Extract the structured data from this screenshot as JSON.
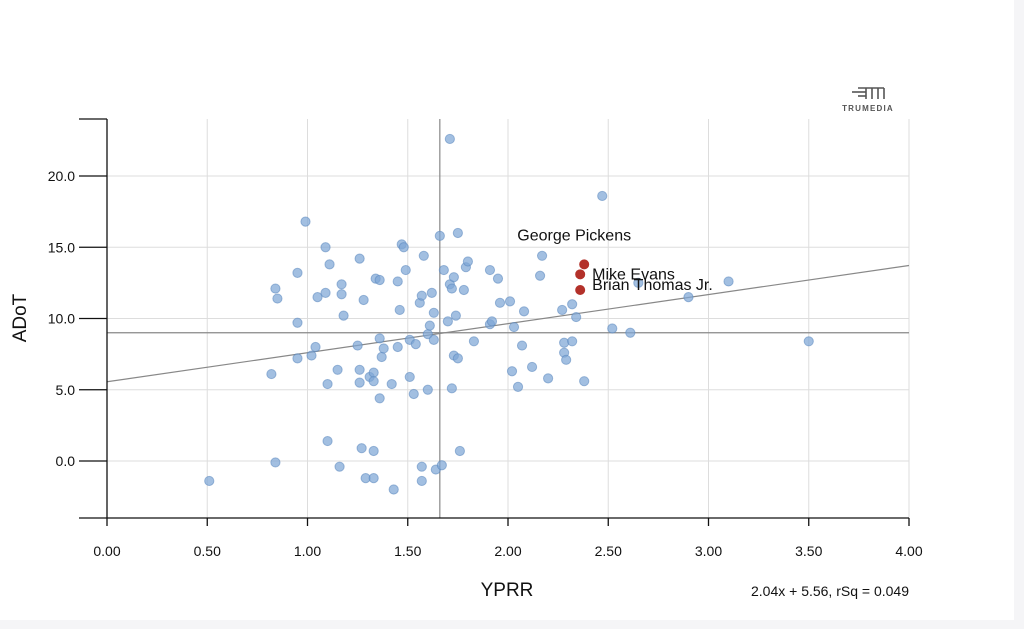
{
  "logo": {
    "text": "TRUMEDIA",
    "icon": "trumedia-logo-icon"
  },
  "chart_data": {
    "type": "scatter",
    "xlabel": "YPRR",
    "ylabel": "ADoT",
    "xlim": [
      0,
      4
    ],
    "ylim": [
      -4,
      24
    ],
    "x_ticks": [
      "0.00",
      "0.50",
      "1.00",
      "1.50",
      "2.00",
      "2.50",
      "3.00",
      "3.50",
      "4.00"
    ],
    "y_ticks": [
      "0.0",
      "5.0",
      "10.0",
      "15.0",
      "20.0"
    ],
    "grid": true,
    "reference_lines": {
      "x": 1.66,
      "y": 9.0
    },
    "regression": {
      "slope": 2.04,
      "intercept": 5.56,
      "label": "2.04x + 5.56, rSq = 0.049"
    },
    "point_color": "#7ea6d6",
    "highlight_color": "#b3312a",
    "points": [
      [
        0.51,
        -1.4
      ],
      [
        0.82,
        6.1
      ],
      [
        0.84,
        12.1
      ],
      [
        0.85,
        11.4
      ],
      [
        0.84,
        -0.1
      ],
      [
        0.95,
        13.2
      ],
      [
        0.95,
        9.7
      ],
      [
        0.95,
        7.2
      ],
      [
        0.99,
        16.8
      ],
      [
        1.02,
        7.4
      ],
      [
        1.04,
        8.0
      ],
      [
        1.05,
        11.5
      ],
      [
        1.09,
        11.8
      ],
      [
        1.09,
        15.0
      ],
      [
        1.1,
        5.4
      ],
      [
        1.11,
        13.8
      ],
      [
        1.1,
        1.4
      ],
      [
        1.15,
        6.4
      ],
      [
        1.16,
        -0.4
      ],
      [
        1.17,
        12.4
      ],
      [
        1.17,
        11.7
      ],
      [
        1.18,
        10.2
      ],
      [
        1.25,
        8.1
      ],
      [
        1.26,
        14.2
      ],
      [
        1.26,
        6.4
      ],
      [
        1.26,
        5.5
      ],
      [
        1.27,
        0.9
      ],
      [
        1.28,
        11.3
      ],
      [
        1.29,
        -1.2
      ],
      [
        1.31,
        5.9
      ],
      [
        1.33,
        6.2
      ],
      [
        1.33,
        5.6
      ],
      [
        1.33,
        0.7
      ],
      [
        1.33,
        -1.2
      ],
      [
        1.34,
        12.8
      ],
      [
        1.36,
        12.7
      ],
      [
        1.36,
        8.6
      ],
      [
        1.36,
        4.4
      ],
      [
        1.37,
        7.3
      ],
      [
        1.38,
        7.9
      ],
      [
        1.42,
        5.4
      ],
      [
        1.43,
        -2.0
      ],
      [
        1.45,
        12.6
      ],
      [
        1.45,
        8.0
      ],
      [
        1.46,
        10.6
      ],
      [
        1.47,
        15.2
      ],
      [
        1.48,
        15.0
      ],
      [
        1.49,
        13.4
      ],
      [
        1.51,
        5.9
      ],
      [
        1.51,
        8.5
      ],
      [
        1.53,
        4.7
      ],
      [
        1.54,
        8.2
      ],
      [
        1.56,
        11.1
      ],
      [
        1.57,
        11.6
      ],
      [
        1.58,
        14.4
      ],
      [
        1.57,
        -0.4
      ],
      [
        1.57,
        -1.4
      ],
      [
        1.6,
        8.9
      ],
      [
        1.6,
        5.0
      ],
      [
        1.61,
        9.5
      ],
      [
        1.62,
        11.8
      ],
      [
        1.63,
        8.5
      ],
      [
        1.63,
        10.4
      ],
      [
        1.64,
        -0.6
      ],
      [
        1.66,
        15.8
      ],
      [
        1.67,
        -0.3
      ],
      [
        1.68,
        13.4
      ],
      [
        1.7,
        9.8
      ],
      [
        1.71,
        22.6
      ],
      [
        1.71,
        12.4
      ],
      [
        1.72,
        12.1
      ],
      [
        1.72,
        5.1
      ],
      [
        1.73,
        12.9
      ],
      [
        1.73,
        7.4
      ],
      [
        1.74,
        10.2
      ],
      [
        1.75,
        7.2
      ],
      [
        1.75,
        16.0
      ],
      [
        1.76,
        0.7
      ],
      [
        1.78,
        12.0
      ],
      [
        1.79,
        13.6
      ],
      [
        1.8,
        14.0
      ],
      [
        1.83,
        8.4
      ],
      [
        1.91,
        13.4
      ],
      [
        1.91,
        9.6
      ],
      [
        1.92,
        9.8
      ],
      [
        1.95,
        12.8
      ],
      [
        1.96,
        11.1
      ],
      [
        2.01,
        11.2
      ],
      [
        2.02,
        6.3
      ],
      [
        2.03,
        9.4
      ],
      [
        2.05,
        5.2
      ],
      [
        2.07,
        8.1
      ],
      [
        2.08,
        10.5
      ],
      [
        2.12,
        6.6
      ],
      [
        2.16,
        13.0
      ],
      [
        2.17,
        14.4
      ],
      [
        2.2,
        5.8
      ],
      [
        2.27,
        10.6
      ],
      [
        2.28,
        8.3
      ],
      [
        2.28,
        7.6
      ],
      [
        2.29,
        7.1
      ],
      [
        2.32,
        8.4
      ],
      [
        2.32,
        11.0
      ],
      [
        2.34,
        10.1
      ],
      [
        2.38,
        5.6
      ],
      [
        2.47,
        18.6
      ],
      [
        2.52,
        9.3
      ],
      [
        2.61,
        9.0
      ],
      [
        2.65,
        12.5
      ],
      [
        2.9,
        11.5
      ],
      [
        3.1,
        12.6
      ],
      [
        3.5,
        8.4
      ]
    ],
    "highlighted": [
      {
        "name": "George Pickens",
        "x": 2.38,
        "y": 13.8
      },
      {
        "name": "Mike Evans",
        "x": 2.36,
        "y": 13.1
      },
      {
        "name": "Brian Thomas Jr.",
        "x": 2.36,
        "y": 12.0
      }
    ]
  }
}
